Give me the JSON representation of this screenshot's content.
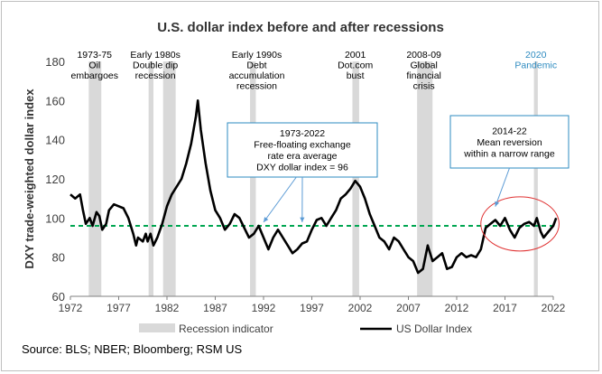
{
  "chart_data": {
    "type": "line",
    "title": "U.S. dollar index before and after recessions",
    "ylabel": "DXY trade-weighted dollar index",
    "xlabel": "",
    "xlim": [
      1972,
      2022
    ],
    "ylim": [
      60,
      180
    ],
    "x_ticks": [
      1972,
      1977,
      1982,
      1987,
      1992,
      1997,
      2002,
      2007,
      2012,
      2017,
      2022
    ],
    "y_ticks": [
      60,
      80,
      100,
      120,
      140,
      160,
      180
    ],
    "grid": false,
    "legend_position": "bottom",
    "series": [
      {
        "name": "US Dollar Index",
        "color": "#000000",
        "points": [
          [
            1972,
            112
          ],
          [
            1972.5,
            110
          ],
          [
            1973,
            112
          ],
          [
            1973.3,
            104
          ],
          [
            1973.6,
            97
          ],
          [
            1974,
            100
          ],
          [
            1974.3,
            96
          ],
          [
            1974.7,
            103
          ],
          [
            1975,
            101
          ],
          [
            1975.3,
            94
          ],
          [
            1975.7,
            97
          ],
          [
            1976,
            104
          ],
          [
            1976.5,
            107
          ],
          [
            1977,
            106
          ],
          [
            1977.5,
            105
          ],
          [
            1978,
            100
          ],
          [
            1978.5,
            92
          ],
          [
            1978.8,
            86
          ],
          [
            1979,
            90
          ],
          [
            1979.5,
            88
          ],
          [
            1979.8,
            92
          ],
          [
            1980,
            88
          ],
          [
            1980.3,
            92
          ],
          [
            1980.6,
            86
          ],
          [
            1981,
            90
          ],
          [
            1981.5,
            97
          ],
          [
            1982,
            106
          ],
          [
            1982.5,
            112
          ],
          [
            1983,
            116
          ],
          [
            1983.5,
            120
          ],
          [
            1984,
            128
          ],
          [
            1984.5,
            138
          ],
          [
            1985,
            152
          ],
          [
            1985.2,
            160
          ],
          [
            1985.5,
            145
          ],
          [
            1986,
            128
          ],
          [
            1986.5,
            114
          ],
          [
            1987,
            104
          ],
          [
            1987.5,
            100
          ],
          [
            1988,
            94
          ],
          [
            1988.5,
            97
          ],
          [
            1989,
            102
          ],
          [
            1989.5,
            100
          ],
          [
            1990,
            95
          ],
          [
            1990.5,
            90
          ],
          [
            1991,
            92
          ],
          [
            1991.5,
            96
          ],
          [
            1992,
            90
          ],
          [
            1992.5,
            84
          ],
          [
            1993,
            90
          ],
          [
            1993.5,
            94
          ],
          [
            1994,
            90
          ],
          [
            1994.5,
            86
          ],
          [
            1995,
            82
          ],
          [
            1995.5,
            84
          ],
          [
            1996,
            87
          ],
          [
            1996.5,
            88
          ],
          [
            1997,
            94
          ],
          [
            1997.5,
            99
          ],
          [
            1998,
            100
          ],
          [
            1998.5,
            96
          ],
          [
            1999,
            100
          ],
          [
            1999.5,
            104
          ],
          [
            2000,
            110
          ],
          [
            2000.5,
            112
          ],
          [
            2001,
            115
          ],
          [
            2001.5,
            119
          ],
          [
            2002,
            116
          ],
          [
            2002.5,
            110
          ],
          [
            2003,
            102
          ],
          [
            2003.5,
            96
          ],
          [
            2004,
            90
          ],
          [
            2004.5,
            88
          ],
          [
            2005,
            84
          ],
          [
            2005.5,
            90
          ],
          [
            2006,
            88
          ],
          [
            2006.5,
            84
          ],
          [
            2007,
            80
          ],
          [
            2007.5,
            78
          ],
          [
            2008,
            72
          ],
          [
            2008.5,
            74
          ],
          [
            2009,
            86
          ],
          [
            2009.5,
            78
          ],
          [
            2010,
            80
          ],
          [
            2010.5,
            82
          ],
          [
            2011,
            74
          ],
          [
            2011.5,
            75
          ],
          [
            2012,
            80
          ],
          [
            2012.5,
            82
          ],
          [
            2013,
            80
          ],
          [
            2013.5,
            81
          ],
          [
            2014,
            80
          ],
          [
            2014.5,
            84
          ],
          [
            2015,
            95
          ],
          [
            2015.5,
            97
          ],
          [
            2016,
            99
          ],
          [
            2016.5,
            96
          ],
          [
            2017,
            100
          ],
          [
            2017.5,
            94
          ],
          [
            2018,
            90
          ],
          [
            2018.5,
            95
          ],
          [
            2019,
            97
          ],
          [
            2019.5,
            98
          ],
          [
            2020,
            96
          ],
          [
            2020.3,
            100
          ],
          [
            2020.7,
            93
          ],
          [
            2021,
            90
          ],
          [
            2021.5,
            93
          ],
          [
            2022,
            96
          ],
          [
            2022.3,
            100
          ]
        ]
      },
      {
        "name": "1973-2022 average",
        "color": "#00a651",
        "style": "dashed",
        "points": [
          [
            1972,
            96
          ],
          [
            2022.3,
            96
          ]
        ]
      }
    ],
    "recessions": [
      {
        "label": [
          "1973-75",
          "Oil",
          "embargoes"
        ],
        "start": 1973.9,
        "end": 1975.2
      },
      {
        "label": [
          "Early 1980s",
          "Double dip",
          "recession"
        ],
        "start": 1980.1,
        "end": 1980.6
      },
      {
        "label": [],
        "start": 1981.6,
        "end": 1982.9
      },
      {
        "label": [
          "Early 1990s",
          "Debt",
          "accumulation",
          "recession"
        ],
        "start": 1990.6,
        "end": 1991.2
      },
      {
        "label": [
          "2001",
          "Dot.com",
          "bust"
        ],
        "start": 2001.2,
        "end": 2001.9
      },
      {
        "label": [
          "2008-09",
          "Global",
          "financial",
          "crisis"
        ],
        "start": 2007.9,
        "end": 2009.5
      },
      {
        "label": [
          "2020",
          "Pandemic"
        ],
        "start": 2020.0,
        "end": 2020.4,
        "label_color": "#2e8bc0"
      }
    ],
    "annotations": [
      {
        "name": "average-callout",
        "lines": [
          "1973-2022",
          "Free-floating exchange",
          "rate era average",
          "DXY dollar index = 96"
        ],
        "arrow_targets": [
          [
            1992,
            96
          ],
          [
            1996,
            96
          ]
        ]
      },
      {
        "name": "mean-reversion-callout",
        "lines": [
          "2014-22",
          "Mean reversion",
          "within a narrow range"
        ],
        "arrow_targets": [
          [
            2016,
            104
          ]
        ]
      }
    ],
    "legend": [
      {
        "label": "Recession indicator",
        "kind": "bar",
        "color": "#d9d9d9"
      },
      {
        "label": "US Dollar Index",
        "kind": "line",
        "color": "#000000"
      }
    ],
    "colors": {
      "recession": "#d9d9d9",
      "callout_border": "#2e8bc0",
      "arrow": "#5b9bd5",
      "ellipse": "#e03131",
      "average_line": "#00a651"
    }
  },
  "source": "Source: BLS; NBER; Bloomberg; RSM US"
}
